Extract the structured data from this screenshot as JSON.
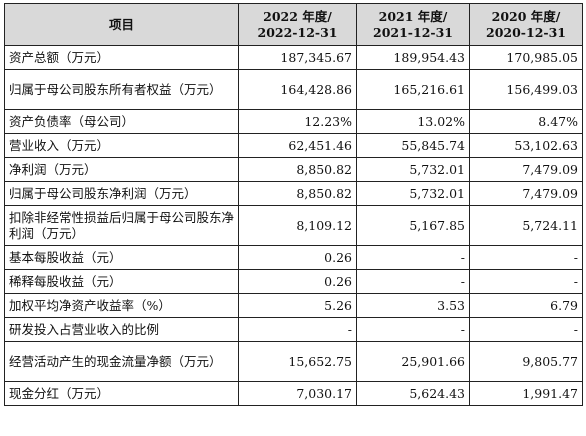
{
  "header": {
    "item": "项目",
    "col2022": [
      "2022 年度/",
      "2022-12-31"
    ],
    "col2021": [
      "2021 年度/",
      "2021-12-31"
    ],
    "col2020": [
      "2020 年度/",
      "2020-12-31"
    ]
  },
  "rows": [
    {
      "label": "资产总额（万元）",
      "v2022": "187,345.67",
      "v2021": "189,954.43",
      "v2020": "170,985.05",
      "tall": false
    },
    {
      "label": "归属于母公司股东所有者权益（万元）",
      "v2022": "164,428.86",
      "v2021": "165,216.61",
      "v2020": "156,499.03",
      "tall": true
    },
    {
      "label": "资产负债率（母公司）",
      "v2022": "12.23%",
      "v2021": "13.02%",
      "v2020": "8.47%",
      "tall": false
    },
    {
      "label": "营业收入（万元）",
      "v2022": "62,451.46",
      "v2021": "55,845.74",
      "v2020": "53,102.63",
      "tall": false
    },
    {
      "label": "净利润（万元）",
      "v2022": "8,850.82",
      "v2021": "5,732.01",
      "v2020": "7,479.09",
      "tall": false
    },
    {
      "label": "归属于母公司股东净利润（万元）",
      "v2022": "8,850.82",
      "v2021": "5,732.01",
      "v2020": "7,479.09",
      "tall": false
    },
    {
      "label": "扣除非经常性损益后归属于母公司股东净利润（万元）",
      "v2022": "8,109.12",
      "v2021": "5,167.85",
      "v2020": "5,724.11",
      "tall": true
    },
    {
      "label": "基本每股收益（元）",
      "v2022": "0.26",
      "v2021": "-",
      "v2020": "-",
      "tall": false
    },
    {
      "label": "稀释每股收益（元）",
      "v2022": "0.26",
      "v2021": "-",
      "v2020": "-",
      "tall": false
    },
    {
      "label": "加权平均净资产收益率（%）",
      "v2022": "5.26",
      "v2021": "3.53",
      "v2020": "6.79",
      "tall": false
    },
    {
      "label": "研发投入占营业收入的比例",
      "v2022": "-",
      "v2021": "-",
      "v2020": "-",
      "tall": false
    },
    {
      "label": "经营活动产生的现金流量净额（万元）",
      "v2022": "15,652.75",
      "v2021": "25,901.66",
      "v2020": "9,805.77",
      "tall": true
    },
    {
      "label": "现金分红（万元）",
      "v2022": "7,030.17",
      "v2021": "5,624.43",
      "v2020": "1,991.47",
      "tall": false
    }
  ]
}
